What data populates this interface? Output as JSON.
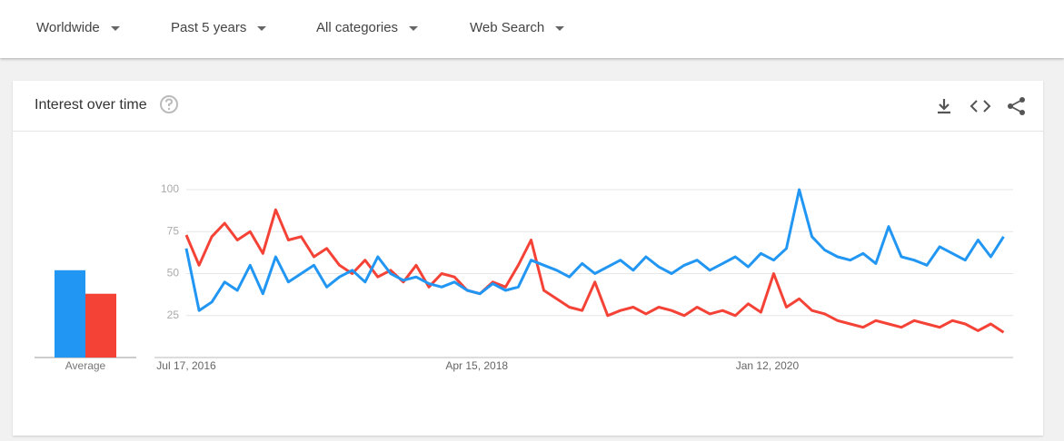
{
  "filters": [
    "Worldwide",
    "Past 5 years",
    "All categories",
    "Web Search"
  ],
  "card_title": "Interest over time",
  "chart_data": {
    "type": "line",
    "average_label": "Average",
    "x": [
      "2016-07-17",
      "2016-08-14",
      "2016-09-11",
      "2016-10-09",
      "2016-11-06",
      "2016-12-04",
      "2017-01-01",
      "2017-01-29",
      "2017-02-26",
      "2017-03-26",
      "2017-04-23",
      "2017-05-21",
      "2017-06-18",
      "2017-07-16",
      "2017-08-13",
      "2017-09-10",
      "2017-10-08",
      "2017-11-05",
      "2017-12-03",
      "2017-12-31",
      "2018-01-28",
      "2018-02-25",
      "2018-03-25",
      "2018-04-22",
      "2018-05-20",
      "2018-06-17",
      "2018-07-15",
      "2018-08-12",
      "2018-09-09",
      "2018-10-07",
      "2018-11-04",
      "2018-12-02",
      "2018-12-30",
      "2019-01-27",
      "2019-02-24",
      "2019-03-24",
      "2019-04-21",
      "2019-05-19",
      "2019-06-16",
      "2019-07-14",
      "2019-08-11",
      "2019-09-08",
      "2019-10-06",
      "2019-11-03",
      "2019-12-01",
      "2019-12-29",
      "2020-01-26",
      "2020-02-23",
      "2020-03-22",
      "2020-04-19",
      "2020-05-17",
      "2020-06-14",
      "2020-07-12",
      "2020-08-09",
      "2020-09-06",
      "2020-10-04",
      "2020-11-01",
      "2020-11-29",
      "2020-12-27",
      "2021-01-24",
      "2021-02-21",
      "2021-03-21",
      "2021-04-18",
      "2021-05-16",
      "2021-06-13"
    ],
    "xlim": [
      "2016-07-17",
      "2021-07-04"
    ],
    "xticks": [
      {
        "value": "2016-07-17",
        "label": "Jul 17, 2016"
      },
      {
        "value": "2018-04-15",
        "label": "Apr 15, 2018"
      },
      {
        "value": "2020-01-12",
        "label": "Jan 12, 2020"
      }
    ],
    "ylim": [
      0,
      100
    ],
    "yticks": [
      25,
      50,
      75,
      100
    ],
    "grid": true,
    "series": [
      {
        "color": "#2196f3",
        "average": 52,
        "values": [
          65,
          28,
          33,
          45,
          40,
          55,
          38,
          60,
          45,
          50,
          55,
          42,
          48,
          52,
          45,
          60,
          50,
          46,
          48,
          44,
          42,
          45,
          40,
          38,
          44,
          40,
          42,
          58,
          55,
          52,
          48,
          56,
          50,
          54,
          58,
          52,
          60,
          54,
          50,
          55,
          58,
          52,
          56,
          60,
          54,
          62,
          58,
          65,
          100,
          72,
          64,
          60,
          58,
          62,
          56,
          78,
          60,
          58,
          55,
          66,
          62,
          58,
          70,
          60,
          72
        ]
      },
      {
        "color": "#f44336",
        "average": 38,
        "values": [
          73,
          55,
          72,
          80,
          70,
          75,
          62,
          88,
          70,
          72,
          60,
          65,
          55,
          50,
          58,
          48,
          52,
          45,
          55,
          42,
          50,
          48,
          40,
          38,
          45,
          42,
          55,
          70,
          40,
          35,
          30,
          28,
          45,
          25,
          28,
          30,
          26,
          30,
          28,
          25,
          30,
          26,
          28,
          25,
          32,
          27,
          50,
          30,
          35,
          28,
          26,
          22,
          20,
          18,
          22,
          20,
          18,
          22,
          20,
          18,
          22,
          20,
          16,
          20,
          15
        ]
      }
    ]
  }
}
